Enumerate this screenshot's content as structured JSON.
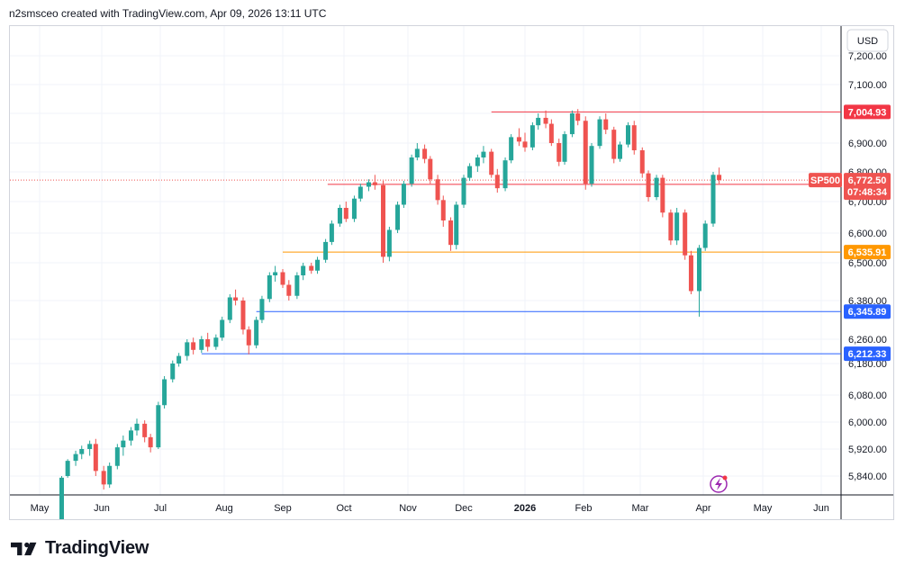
{
  "header": {
    "attribution": "n2smsceo created with TradingView.com, Apr 09, 2026 13:11 UTC"
  },
  "footer": {
    "brand": "TradingView",
    "logo_icon": "tradingview-logo-icon"
  },
  "colors": {
    "up": "#26a69a",
    "down": "#ef5350",
    "grid": "#f0f3fa",
    "axis": "#131722",
    "red_line": "#f23645",
    "orange_line": "#ff9800",
    "blue_line": "#2962ff"
  },
  "chart_data": {
    "type": "candlestick",
    "symbol": "SP500",
    "currency": "USD",
    "y_ticks": [
      5840,
      5920,
      6000,
      6080,
      6180,
      6260,
      6380,
      6500,
      6600,
      6700,
      6800,
      6900,
      7000,
      7100,
      7200
    ],
    "y_tick_labels": [
      "5,840.00",
      "5,920.00",
      "6,000.00",
      "6,080.00",
      "6,180.00",
      "6,260.00",
      "6,380.00",
      "6,500.00",
      "6,600.00",
      "6,700.00",
      "6,800.00",
      "6,900.00",
      "7,000.00",
      "7,100.00",
      "7,200.00"
    ],
    "x_labels": [
      "May",
      "Jun",
      "Jul",
      "Aug",
      "Sep",
      "Oct",
      "Nov",
      "Dec",
      "2026",
      "Feb",
      "Mar",
      "Apr",
      "May",
      "Jun"
    ],
    "horizontal_levels": [
      {
        "value": 7004.93,
        "label": "7,004.93",
        "color": "#f23645",
        "from": "2025-12-15"
      },
      {
        "value": 6758.11,
        "label": "6,758.11",
        "color": "#f23645",
        "from": "2025-09-23"
      },
      {
        "value": 6535.91,
        "label": "6,535.91",
        "color": "#ff9800",
        "from": "2025-09-01"
      },
      {
        "value": 6345.89,
        "label": "6,345.89",
        "color": "#2962ff",
        "from": "2025-08-18"
      },
      {
        "value": 6212.33,
        "label": "6,212.33",
        "color": "#2962ff",
        "from": "2025-07-21"
      }
    ],
    "last_price": {
      "symbol_label": "SP500",
      "value": "6,772.50",
      "countdown": "07:48:34"
    },
    "candles": [
      [
        "2025-05-12",
        5700,
        5840,
        5690,
        5835
      ],
      [
        "2025-05-15",
        5840,
        5890,
        5835,
        5885
      ],
      [
        "2025-05-19",
        5885,
        5915,
        5870,
        5905
      ],
      [
        "2025-05-22",
        5905,
        5930,
        5890,
        5920
      ],
      [
        "2025-05-26",
        5920,
        5945,
        5900,
        5935
      ],
      [
        "2025-05-29",
        5935,
        5950,
        5840,
        5855
      ],
      [
        "2025-06-02",
        5855,
        5870,
        5800,
        5815
      ],
      [
        "2025-06-05",
        5815,
        5880,
        5805,
        5870
      ],
      [
        "2025-06-09",
        5870,
        5935,
        5860,
        5925
      ],
      [
        "2025-06-12",
        5925,
        5960,
        5900,
        5945
      ],
      [
        "2025-06-16",
        5945,
        5985,
        5930,
        5975
      ],
      [
        "2025-06-19",
        5975,
        6010,
        5960,
        5995
      ],
      [
        "2025-06-23",
        5995,
        6005,
        5940,
        5955
      ],
      [
        "2025-06-26",
        5955,
        5965,
        5910,
        5925
      ],
      [
        "2025-06-30",
        5925,
        6060,
        5920,
        6050
      ],
      [
        "2025-07-03",
        6050,
        6140,
        6040,
        6130
      ],
      [
        "2025-07-07",
        6130,
        6190,
        6120,
        6180
      ],
      [
        "2025-07-10",
        6180,
        6215,
        6170,
        6205
      ],
      [
        "2025-07-14",
        6205,
        6260,
        6190,
        6250
      ],
      [
        "2025-07-17",
        6250,
        6265,
        6210,
        6225
      ],
      [
        "2025-07-21",
        6225,
        6270,
        6215,
        6260
      ],
      [
        "2025-07-24",
        6260,
        6280,
        6220,
        6235
      ],
      [
        "2025-07-28",
        6235,
        6275,
        6225,
        6265
      ],
      [
        "2025-07-31",
        6265,
        6330,
        6255,
        6320
      ],
      [
        "2025-08-04",
        6320,
        6400,
        6310,
        6390
      ],
      [
        "2025-08-07",
        6390,
        6415,
        6365,
        6380
      ],
      [
        "2025-08-11",
        6380,
        6390,
        6275,
        6290
      ],
      [
        "2025-08-14",
        6290,
        6300,
        6210,
        6240
      ],
      [
        "2025-08-18",
        6240,
        6330,
        6230,
        6320
      ],
      [
        "2025-08-21",
        6320,
        6395,
        6310,
        6385
      ],
      [
        "2025-08-25",
        6385,
        6470,
        6375,
        6460
      ],
      [
        "2025-08-28",
        6460,
        6490,
        6440,
        6470
      ],
      [
        "2025-09-01",
        6470,
        6480,
        6420,
        6430
      ],
      [
        "2025-09-04",
        6430,
        6445,
        6380,
        6395
      ],
      [
        "2025-09-08",
        6395,
        6470,
        6385,
        6460
      ],
      [
        "2025-09-11",
        6460,
        6500,
        6445,
        6490
      ],
      [
        "2025-09-15",
        6490,
        6500,
        6465,
        6475
      ],
      [
        "2025-09-18",
        6475,
        6520,
        6465,
        6510
      ],
      [
        "2025-09-22",
        6510,
        6580,
        6500,
        6570
      ],
      [
        "2025-09-25",
        6570,
        6640,
        6560,
        6630
      ],
      [
        "2025-09-29",
        6630,
        6690,
        6620,
        6680
      ],
      [
        "2025-10-02",
        6680,
        6700,
        6635,
        6645
      ],
      [
        "2025-10-06",
        6645,
        6720,
        6635,
        6710
      ],
      [
        "2025-10-09",
        6710,
        6760,
        6700,
        6750
      ],
      [
        "2025-10-13",
        6750,
        6775,
        6735,
        6765
      ],
      [
        "2025-10-16",
        6765,
        6790,
        6740,
        6755
      ],
      [
        "2025-10-20",
        6755,
        6770,
        6500,
        6520
      ],
      [
        "2025-10-23",
        6520,
        6620,
        6505,
        6610
      ],
      [
        "2025-10-27",
        6610,
        6700,
        6600,
        6690
      ],
      [
        "2025-10-30",
        6690,
        6770,
        6680,
        6760
      ],
      [
        "2025-11-03",
        6760,
        6860,
        6750,
        6850
      ],
      [
        "2025-11-06",
        6850,
        6900,
        6840,
        6880
      ],
      [
        "2025-11-10",
        6880,
        6895,
        6830,
        6845
      ],
      [
        "2025-11-13",
        6845,
        6855,
        6760,
        6775
      ],
      [
        "2025-11-17",
        6775,
        6790,
        6690,
        6705
      ],
      [
        "2025-11-20",
        6705,
        6720,
        6620,
        6640
      ],
      [
        "2025-11-24",
        6640,
        6650,
        6540,
        6560
      ],
      [
        "2025-11-27",
        6560,
        6700,
        6545,
        6690
      ],
      [
        "2025-12-01",
        6690,
        6790,
        6680,
        6780
      ],
      [
        "2025-12-04",
        6780,
        6830,
        6770,
        6820
      ],
      [
        "2025-12-08",
        6820,
        6860,
        6800,
        6850
      ],
      [
        "2025-12-11",
        6850,
        6890,
        6830,
        6870
      ],
      [
        "2025-12-15",
        6870,
        6880,
        6780,
        6790
      ],
      [
        "2025-12-18",
        6790,
        6810,
        6730,
        6745
      ],
      [
        "2025-12-22",
        6745,
        6850,
        6735,
        6840
      ],
      [
        "2025-12-25",
        6840,
        6930,
        6830,
        6920
      ],
      [
        "2025-12-29",
        6920,
        6950,
        6890,
        6905
      ],
      [
        "2026-01-01",
        6905,
        6935,
        6870,
        6885
      ],
      [
        "2026-01-05",
        6885,
        6970,
        6875,
        6960
      ],
      [
        "2026-01-08",
        6960,
        7000,
        6945,
        6985
      ],
      [
        "2026-01-12",
        6985,
        7010,
        6950,
        6965
      ],
      [
        "2026-01-15",
        6965,
        6980,
        6890,
        6900
      ],
      [
        "2026-01-19",
        6900,
        6915,
        6820,
        6835
      ],
      [
        "2026-01-22",
        6835,
        6940,
        6825,
        6930
      ],
      [
        "2026-01-26",
        6930,
        7010,
        6920,
        7000
      ],
      [
        "2026-01-29",
        7000,
        7015,
        6960,
        6975
      ],
      [
        "2026-02-02",
        6975,
        6990,
        6740,
        6760
      ],
      [
        "2026-02-05",
        6760,
        6900,
        6750,
        6890
      ],
      [
        "2026-02-09",
        6890,
        6990,
        6880,
        6980
      ],
      [
        "2026-02-12",
        6980,
        7000,
        6930,
        6945
      ],
      [
        "2026-02-16",
        6945,
        6955,
        6830,
        6845
      ],
      [
        "2026-02-19",
        6845,
        6905,
        6835,
        6895
      ],
      [
        "2026-02-23",
        6895,
        6970,
        6885,
        6960
      ],
      [
        "2026-02-26",
        6960,
        6975,
        6860,
        6875
      ],
      [
        "2026-03-02",
        6875,
        6885,
        6780,
        6795
      ],
      [
        "2026-03-05",
        6795,
        6805,
        6700,
        6715
      ],
      [
        "2026-03-09",
        6715,
        6790,
        6705,
        6780
      ],
      [
        "2026-03-12",
        6780,
        6790,
        6650,
        6665
      ],
      [
        "2026-03-16",
        6665,
        6675,
        6560,
        6575
      ],
      [
        "2026-03-19",
        6575,
        6680,
        6560,
        6665
      ],
      [
        "2026-03-23",
        6665,
        6675,
        6510,
        6525
      ],
      [
        "2026-03-26",
        6525,
        6540,
        6400,
        6410
      ],
      [
        "2026-03-30",
        6410,
        6560,
        6330,
        6550
      ],
      [
        "2026-04-02",
        6550,
        6640,
        6540,
        6630
      ],
      [
        "2026-04-06",
        6630,
        6800,
        6620,
        6790
      ],
      [
        "2026-04-09",
        6790,
        6815,
        6760,
        6772.5
      ]
    ]
  }
}
